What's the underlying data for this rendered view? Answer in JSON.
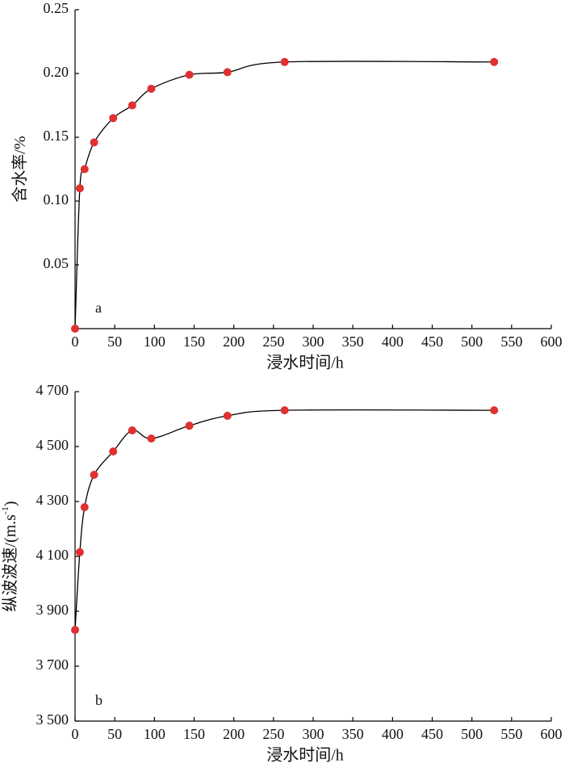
{
  "chart_data": [
    {
      "type": "line",
      "annotation": "a",
      "xlabel": "浸水时间/h",
      "ylabel": {
        "text": "含水率/%"
      },
      "xlim": [
        0,
        600
      ],
      "xticks": [
        0,
        50,
        100,
        150,
        200,
        250,
        300,
        350,
        400,
        450,
        500,
        550,
        600
      ],
      "ylim": [
        0,
        0.25
      ],
      "yticks": [
        {
          "value": 0.05,
          "label": "0.05"
        },
        {
          "value": 0.1,
          "label": "0.10"
        },
        {
          "value": 0.15,
          "label": "0.15"
        },
        {
          "value": 0.2,
          "label": "0.20"
        },
        {
          "value": 0.25,
          "label": "0.25"
        }
      ],
      "series": [
        {
          "color": "#e03030",
          "line_color": "#000000",
          "x": [
            0,
            6,
            12,
            24,
            48,
            72,
            96,
            144,
            192,
            264,
            528
          ],
          "values": [
            0,
            0.11,
            0.125,
            0.146,
            0.165,
            0.175,
            0.188,
            0.199,
            0.201,
            0.209,
            0.209
          ]
        }
      ]
    },
    {
      "type": "line",
      "annotation": "b",
      "xlabel": "浸水时间/h",
      "ylabel": {
        "text": "纵波波速/(m.s",
        "superscript": "-1",
        "end": ")"
      },
      "xlim": [
        0,
        600
      ],
      "xticks": [
        0,
        50,
        100,
        150,
        200,
        250,
        300,
        350,
        400,
        450,
        500,
        550,
        600
      ],
      "ylim": [
        3500,
        4700
      ],
      "yticks": [
        {
          "value": 3500,
          "label": "3 500"
        },
        {
          "value": 3700,
          "label": "3 700"
        },
        {
          "value": 3900,
          "label": "3 900"
        },
        {
          "value": 4100,
          "label": "4 100"
        },
        {
          "value": 4300,
          "label": "4 300"
        },
        {
          "value": 4500,
          "label": "4 500"
        },
        {
          "value": 4700,
          "label": "4 700"
        }
      ],
      "series": [
        {
          "color": "#e03030",
          "line_color": "#000000",
          "x": [
            0,
            6,
            12,
            24,
            48,
            72,
            96,
            144,
            192,
            264,
            528
          ],
          "values": [
            3832,
            4115,
            4279,
            4397,
            4482,
            4559,
            4529,
            4576,
            4612,
            4632,
            4632
          ]
        }
      ]
    }
  ]
}
